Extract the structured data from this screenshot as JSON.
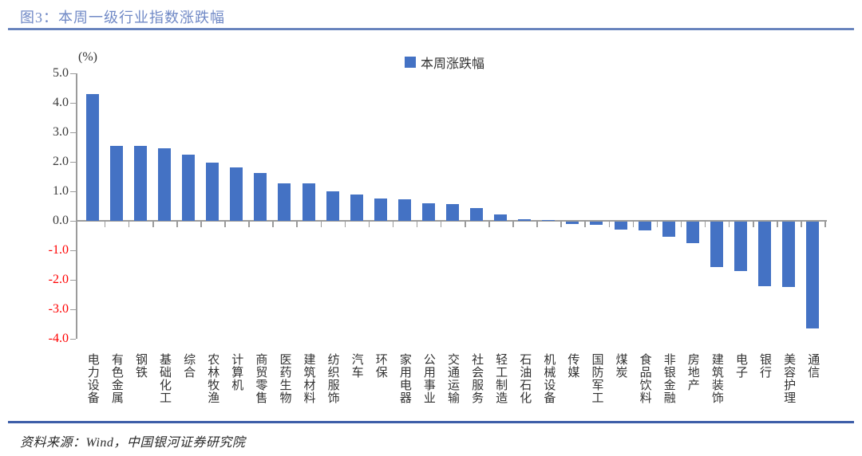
{
  "header": {
    "title": "图3：本周一级行业指数涨跌幅"
  },
  "legend": {
    "label": "本周涨跌幅",
    "swatch_icon": "blue-square-icon"
  },
  "axis": {
    "unit_label": "(%)"
  },
  "footer": {
    "source": "资料来源：Wind，中国银河证券研究院"
  },
  "colors": {
    "bar": "#4472C4",
    "title": "#7089C6",
    "rule": "#3D5EA8",
    "rule_light": "#9FB3D8",
    "axis": "#9B9B9B",
    "tick_label": "#3A3A3A",
    "negative_tick_label": "#FF0000"
  },
  "chart_data": {
    "type": "bar",
    "title": "本周一级行业指数涨跌幅",
    "series_name": "本周涨跌幅",
    "unit": "%",
    "ylabel": "(%)",
    "ylim": [
      -4.0,
      5.0
    ],
    "yticks": [
      5.0,
      4.0,
      3.0,
      2.0,
      1.0,
      0.0,
      -1.0,
      -2.0,
      -3.0,
      -4.0
    ],
    "grid": false,
    "legend_position": "top-center",
    "categories": [
      "电力设备",
      "有色金属",
      "钢铁",
      "基础化工",
      "综合",
      "农林牧渔",
      "计算机",
      "商贸零售",
      "医药生物",
      "建筑材料",
      "纺织服饰",
      "汽车",
      "环保",
      "家用电器",
      "公用事业",
      "交通运输",
      "社会服务",
      "轻工制造",
      "石油石化",
      "机械设备",
      "传媒",
      "国防军工",
      "煤炭",
      "食品饮料",
      "非银金融",
      "房地产",
      "建筑装饰",
      "电子",
      "银行",
      "美容护理",
      "通信"
    ],
    "values": [
      4.3,
      2.55,
      2.55,
      2.46,
      2.24,
      1.96,
      1.81,
      1.63,
      1.28,
      1.26,
      1.0,
      0.9,
      0.75,
      0.72,
      0.6,
      0.57,
      0.44,
      0.21,
      0.05,
      0.03,
      -0.08,
      -0.1,
      -0.28,
      -0.3,
      -0.52,
      -0.72,
      -1.55,
      -1.68,
      -2.18,
      -2.22,
      -3.62
    ]
  }
}
